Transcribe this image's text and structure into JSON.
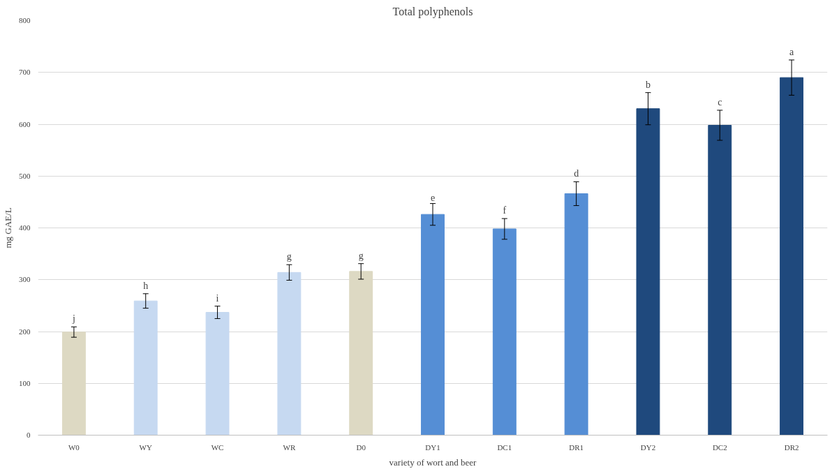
{
  "chart_data": {
    "type": "bar",
    "title": "Total polyphenols",
    "xlabel": "variety of wort and beer",
    "ylabel": "mg GAE/L",
    "categories": [
      "W0",
      "WY",
      "WC",
      "WR",
      "D0",
      "DY1",
      "DC1",
      "DR1",
      "DY2",
      "DC2",
      "DR2"
    ],
    "values": [
      199,
      259,
      237,
      314,
      316,
      426,
      398,
      466,
      630,
      598,
      690
    ],
    "errors": [
      10,
      14,
      12,
      15,
      15,
      21,
      20,
      23,
      31,
      29,
      34
    ],
    "colors": [
      "#ddd9c3",
      "#c6d9f1",
      "#c6d9f1",
      "#c6d9f1",
      "#ddd9c3",
      "#558ed5",
      "#558ed5",
      "#558ed5",
      "#1f497d",
      "#1f497d",
      "#1f497d"
    ],
    "ylim": [
      0,
      800
    ],
    "yticks": [
      0,
      100,
      200,
      300,
      400,
      500,
      600,
      700,
      800
    ],
    "grid": "y",
    "annotations": [
      {
        "text": "j",
        "x": "W0",
        "y": 209
      },
      {
        "text": "h",
        "x": "WY",
        "y": 273
      },
      {
        "text": "i",
        "x": "WC",
        "y": 249
      },
      {
        "text": "g",
        "x": "WR",
        "y": 329
      },
      {
        "text": "g",
        "x": "D0",
        "y": 331
      },
      {
        "text": "e",
        "x": "DY1",
        "y": 447
      },
      {
        "text": "f",
        "x": "DC1",
        "y": 418
      },
      {
        "text": "d",
        "x": "DR1",
        "y": 489
      },
      {
        "text": "b",
        "x": "DY2",
        "y": 661
      },
      {
        "text": "c",
        "x": "DC2",
        "y": 627
      },
      {
        "text": "a",
        "x": "DR2",
        "y": 724
      }
    ]
  }
}
